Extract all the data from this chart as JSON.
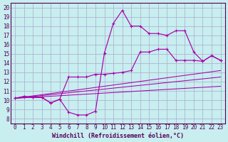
{
  "xlabel": "Windchill (Refroidissement éolien,°C)",
  "bg_color": "#c8eef0",
  "line_color": "#aa00aa",
  "grid_color": "#aaaacc",
  "xlim": [
    -0.5,
    23.5
  ],
  "ylim": [
    7.5,
    20.5
  ],
  "xticks": [
    0,
    1,
    2,
    3,
    4,
    5,
    6,
    7,
    8,
    9,
    10,
    11,
    12,
    13,
    14,
    15,
    16,
    17,
    18,
    19,
    20,
    21,
    22,
    23
  ],
  "yticks": [
    8,
    9,
    10,
    11,
    12,
    13,
    14,
    15,
    16,
    17,
    18,
    19,
    20
  ],
  "curve_noisy_x": [
    0,
    1,
    2,
    3,
    4,
    5,
    6,
    7,
    8,
    9,
    10,
    11,
    12,
    13,
    14,
    15,
    16,
    17,
    18,
    19,
    20,
    21,
    22,
    23
  ],
  "curve_noisy_y": [
    10.2,
    10.4,
    10.3,
    10.3,
    9.7,
    10.1,
    8.7,
    8.4,
    8.4,
    8.8,
    15.1,
    18.3,
    19.7,
    18.0,
    18.0,
    17.2,
    17.2,
    17.0,
    17.5,
    17.5,
    15.2,
    14.2,
    14.8,
    14.3
  ],
  "curve_smooth_x": [
    0,
    1,
    2,
    3,
    4,
    5,
    6,
    7,
    8,
    9,
    10,
    11,
    12,
    13,
    14,
    15,
    16,
    17,
    18,
    19,
    20,
    21,
    22,
    23
  ],
  "curve_smooth_y": [
    10.2,
    10.4,
    10.3,
    10.3,
    9.7,
    10.1,
    12.5,
    12.5,
    12.5,
    12.8,
    12.8,
    12.9,
    13.0,
    13.2,
    15.2,
    15.2,
    15.5,
    15.5,
    14.3,
    14.3,
    14.3,
    14.2,
    14.8,
    14.3
  ],
  "line1_x": [
    0,
    23
  ],
  "line1_y": [
    10.2,
    11.5
  ],
  "line2_x": [
    0,
    23
  ],
  "line2_y": [
    10.2,
    12.5
  ],
  "line3_x": [
    0,
    23
  ],
  "line3_y": [
    10.2,
    13.2
  ]
}
